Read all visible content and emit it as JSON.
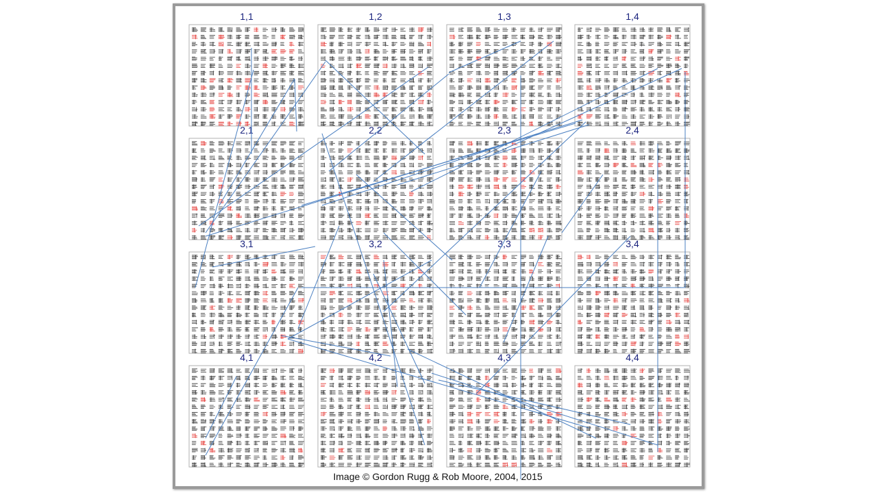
{
  "grids": [
    {
      "label": "1,1"
    },
    {
      "label": "1,2"
    },
    {
      "label": "1,3"
    },
    {
      "label": "1,4"
    },
    {
      "label": "2,1"
    },
    {
      "label": "2,2"
    },
    {
      "label": "2,3"
    },
    {
      "label": "2,4"
    },
    {
      "label": "3,1"
    },
    {
      "label": "3,2"
    },
    {
      "label": "3,3"
    },
    {
      "label": "3,4"
    },
    {
      "label": "4,1"
    },
    {
      "label": "4,2"
    },
    {
      "label": "4,3"
    },
    {
      "label": "4,4"
    }
  ],
  "caption": "Image © Gordon Rugg & Rob Moore, 2004, 2015",
  "colors": {
    "label": "#1a237e",
    "highlight": "#e53935",
    "glyph": "#333333",
    "line": "#4a7fc1",
    "grid_border": "#b0b0b0",
    "frame_border": "#9a9a9a"
  }
}
